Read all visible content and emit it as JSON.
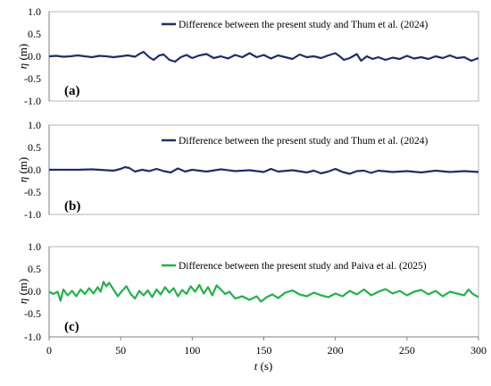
{
  "chart_data": [
    {
      "type": "line",
      "panel_label": "(a)",
      "ylabel": "η (m)",
      "ylabel_symbol": "η",
      "ylabel_unit": "(m)",
      "ylim": [
        -1.0,
        1.0
      ],
      "yticks": [
        "1.0",
        "0.5",
        "0.0",
        "-0.5",
        "-1.0"
      ],
      "xlim": [
        0,
        300
      ],
      "grid": false,
      "legend_position": "top-right",
      "series": [
        {
          "name": "Difference between the present study and Thum et al. (2024)",
          "color": "#1f2d6b",
          "x": [
            0,
            5,
            10,
            15,
            20,
            25,
            30,
            35,
            40,
            45,
            50,
            55,
            60,
            63,
            66,
            70,
            73,
            77,
            80,
            84,
            88,
            92,
            96,
            100,
            105,
            110,
            115,
            120,
            125,
            130,
            135,
            140,
            145,
            150,
            155,
            160,
            165,
            170,
            175,
            180,
            185,
            190,
            195,
            200,
            203,
            206,
            210,
            215,
            218,
            222,
            226,
            230,
            235,
            240,
            245,
            250,
            255,
            260,
            265,
            270,
            275,
            280,
            285,
            290,
            295,
            300
          ],
          "y": [
            0.0,
            0.01,
            -0.01,
            0.0,
            0.02,
            0.0,
            -0.02,
            0.01,
            0.0,
            -0.02,
            0.0,
            0.02,
            -0.01,
            0.05,
            0.1,
            -0.02,
            -0.08,
            0.02,
            0.04,
            -0.08,
            -0.12,
            -0.02,
            0.03,
            -0.04,
            0.02,
            0.05,
            -0.04,
            0.0,
            -0.05,
            0.03,
            -0.02,
            0.07,
            -0.02,
            0.03,
            -0.05,
            0.02,
            -0.02,
            -0.06,
            0.04,
            -0.02,
            0.0,
            -0.04,
            0.02,
            0.07,
            0.0,
            -0.08,
            -0.04,
            0.05,
            -0.1,
            0.0,
            -0.06,
            -0.02,
            -0.08,
            -0.03,
            -0.06,
            0.01,
            -0.05,
            -0.02,
            -0.06,
            0.0,
            -0.04,
            0.02,
            -0.04,
            -0.02,
            -0.1,
            -0.04
          ]
        }
      ]
    },
    {
      "type": "line",
      "panel_label": "(b)",
      "ylabel": "η (m)",
      "ylabel_symbol": "η",
      "ylabel_unit": "(m)",
      "ylim": [
        -1.0,
        1.0
      ],
      "yticks": [
        "1.0",
        "0.5",
        "0.0",
        "-0.5",
        "-1.0"
      ],
      "xlim": [
        0,
        300
      ],
      "grid": false,
      "legend_position": "top-right",
      "series": [
        {
          "name": "Difference between the present study and Thum et al. (2024)",
          "color": "#1f2d6b",
          "x": [
            0,
            10,
            20,
            30,
            40,
            45,
            50,
            53,
            56,
            60,
            65,
            70,
            75,
            80,
            85,
            90,
            95,
            100,
            110,
            120,
            130,
            140,
            150,
            155,
            160,
            170,
            180,
            185,
            190,
            195,
            200,
            205,
            210,
            215,
            220,
            225,
            230,
            240,
            250,
            260,
            270,
            280,
            290,
            300
          ],
          "y": [
            0.0,
            0.0,
            0.0,
            0.01,
            -0.01,
            -0.02,
            0.02,
            0.06,
            0.04,
            -0.04,
            0.0,
            -0.03,
            0.02,
            -0.03,
            -0.06,
            0.03,
            -0.04,
            0.0,
            -0.04,
            0.01,
            -0.03,
            -0.01,
            -0.05,
            0.02,
            -0.04,
            -0.01,
            -0.06,
            -0.02,
            -0.08,
            -0.04,
            0.02,
            -0.05,
            -0.09,
            -0.03,
            -0.02,
            -0.07,
            -0.02,
            -0.05,
            -0.03,
            -0.06,
            -0.02,
            -0.05,
            -0.03,
            -0.05
          ]
        }
      ]
    },
    {
      "type": "line",
      "panel_label": "(c)",
      "ylabel": "η (m)",
      "ylabel_symbol": "η",
      "ylabel_unit": "(m)",
      "xlabel": "t (s)",
      "xlabel_symbol": "t",
      "xlabel_unit": "(s)",
      "ylim": [
        -1.0,
        1.0
      ],
      "yticks": [
        "1.0",
        "0.5",
        "0.0",
        "-0.5",
        "-1.0"
      ],
      "xlim": [
        0,
        300
      ],
      "xticks": [
        "0",
        "50",
        "100",
        "150",
        "200",
        "250",
        "300"
      ],
      "grid": false,
      "legend_position": "top-right",
      "series": [
        {
          "name": "Difference between the present study and Paiva et al. (2025)",
          "color": "#22b14c",
          "x": [
            0,
            3,
            6,
            8,
            10,
            13,
            16,
            19,
            22,
            25,
            28,
            31,
            34,
            36,
            38,
            40,
            42,
            45,
            48,
            51,
            54,
            57,
            60,
            63,
            66,
            69,
            72,
            75,
            78,
            81,
            84,
            87,
            90,
            93,
            96,
            99,
            102,
            105,
            108,
            111,
            114,
            117,
            120,
            123,
            126,
            130,
            135,
            140,
            145,
            148,
            152,
            156,
            160,
            165,
            170,
            175,
            180,
            185,
            190,
            195,
            200,
            205,
            210,
            215,
            220,
            225,
            230,
            235,
            240,
            245,
            250,
            255,
            260,
            265,
            270,
            275,
            280,
            285,
            290,
            293,
            296,
            300
          ],
          "y": [
            0.0,
            -0.05,
            0.0,
            -0.2,
            0.05,
            -0.08,
            0.02,
            -0.1,
            0.05,
            -0.05,
            0.08,
            -0.04,
            0.1,
            0.0,
            0.22,
            0.12,
            0.2,
            0.05,
            -0.1,
            0.02,
            0.12,
            -0.05,
            -0.15,
            0.02,
            -0.08,
            0.03,
            -0.12,
            0.05,
            -0.06,
            0.1,
            -0.02,
            0.08,
            -0.1,
            0.04,
            -0.05,
            0.12,
            0.0,
            0.15,
            -0.04,
            0.1,
            -0.08,
            0.14,
            0.05,
            -0.05,
            0.0,
            -0.15,
            -0.1,
            -0.18,
            -0.1,
            -0.22,
            -0.12,
            -0.06,
            -0.14,
            -0.02,
            0.03,
            -0.06,
            -0.1,
            -0.02,
            -0.08,
            -0.12,
            -0.04,
            -0.1,
            0.02,
            -0.06,
            0.05,
            -0.08,
            0.0,
            0.06,
            -0.04,
            0.02,
            -0.08,
            0.0,
            0.04,
            -0.06,
            0.02,
            -0.1,
            0.0,
            -0.04,
            -0.08,
            0.05,
            -0.05,
            -0.12
          ]
        }
      ]
    }
  ]
}
